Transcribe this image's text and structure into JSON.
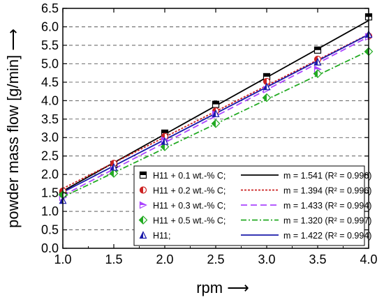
{
  "chart_data": {
    "type": "line",
    "xlabel": "rpm",
    "ylabel": "powder mass flow [g/min]",
    "xlim": [
      1.0,
      4.0
    ],
    "ylim": [
      0.0,
      6.5
    ],
    "xticks": [
      "1.0",
      "1.5",
      "2.0",
      "2.5",
      "3.0",
      "3.5",
      "4.0"
    ],
    "yticks": [
      "0.0",
      "0.5",
      "1.0",
      "1.5",
      "2.0",
      "2.5",
      "3.0",
      "3.5",
      "4.0",
      "4.5",
      "5.0",
      "5.5",
      "6.0",
      "6.5"
    ],
    "grid": "horizontal dashed",
    "legend_position": "bottom-right",
    "arrow_glyph": "⟶",
    "series": [
      {
        "name": "H11 + 0.1 wt.-% C;",
        "fit_label": "m = 1.541 (R² = 0.996)",
        "color": "#000000",
        "marker": "square-half",
        "line_style": "solid",
        "x": [
          1.0,
          1.5,
          2.0,
          2.5,
          3.0,
          3.5,
          4.0
        ],
        "y": [
          1.47,
          2.27,
          3.12,
          3.9,
          4.65,
          5.37,
          6.27
        ],
        "fit": [
          1.55,
          6.17
        ]
      },
      {
        "name": "H11 + 0.2 wt.-% C;",
        "fit_label": "m = 1.394 (R² = 0.996)",
        "color": "#cc2222",
        "marker": "circle-half",
        "line_style": "dotted",
        "x": [
          1.0,
          1.5,
          2.0,
          2.5,
          3.0,
          3.5,
          4.0
        ],
        "y": [
          1.55,
          2.3,
          3.03,
          3.72,
          4.52,
          5.12,
          5.75
        ],
        "fit": [
          1.62,
          5.8
        ]
      },
      {
        "name": "H11 + 0.3 wt.-% C;",
        "fit_label": "m = 1.433 (R² = 0.994)",
        "color": "#aa44ff",
        "marker": "triangle-right-half",
        "line_style": "dashed",
        "x": [
          1.0,
          1.5,
          2.0,
          2.5,
          3.0,
          3.5,
          4.0
        ],
        "y": [
          1.38,
          2.12,
          2.93,
          3.63,
          4.3,
          4.85,
          5.73
        ],
        "fit": [
          1.43,
          5.73
        ]
      },
      {
        "name": "H11 +  0.5 wt.-% C;",
        "fit_label": "m = 1.320 (R² = 0.997)",
        "color": "#22aa22",
        "marker": "diamond-half",
        "line_style": "dashdot",
        "x": [
          1.0,
          1.5,
          2.0,
          2.5,
          3.0,
          3.5,
          4.0
        ],
        "y": [
          1.45,
          2.03,
          2.75,
          3.38,
          4.08,
          4.73,
          5.33
        ],
        "fit": [
          1.39,
          5.35
        ]
      },
      {
        "name": "H11;",
        "fit_label": "m = 1.422 (R² = 0.994)",
        "color": "#1a1aaa",
        "marker": "triangle-up-half",
        "line_style": "solid",
        "x": [
          1.0,
          1.5,
          2.0,
          2.5,
          3.0,
          3.5,
          4.0
        ],
        "y": [
          1.3,
          2.2,
          2.9,
          3.65,
          4.38,
          5.05,
          5.8
        ],
        "fit": [
          1.52,
          5.79
        ]
      }
    ]
  }
}
